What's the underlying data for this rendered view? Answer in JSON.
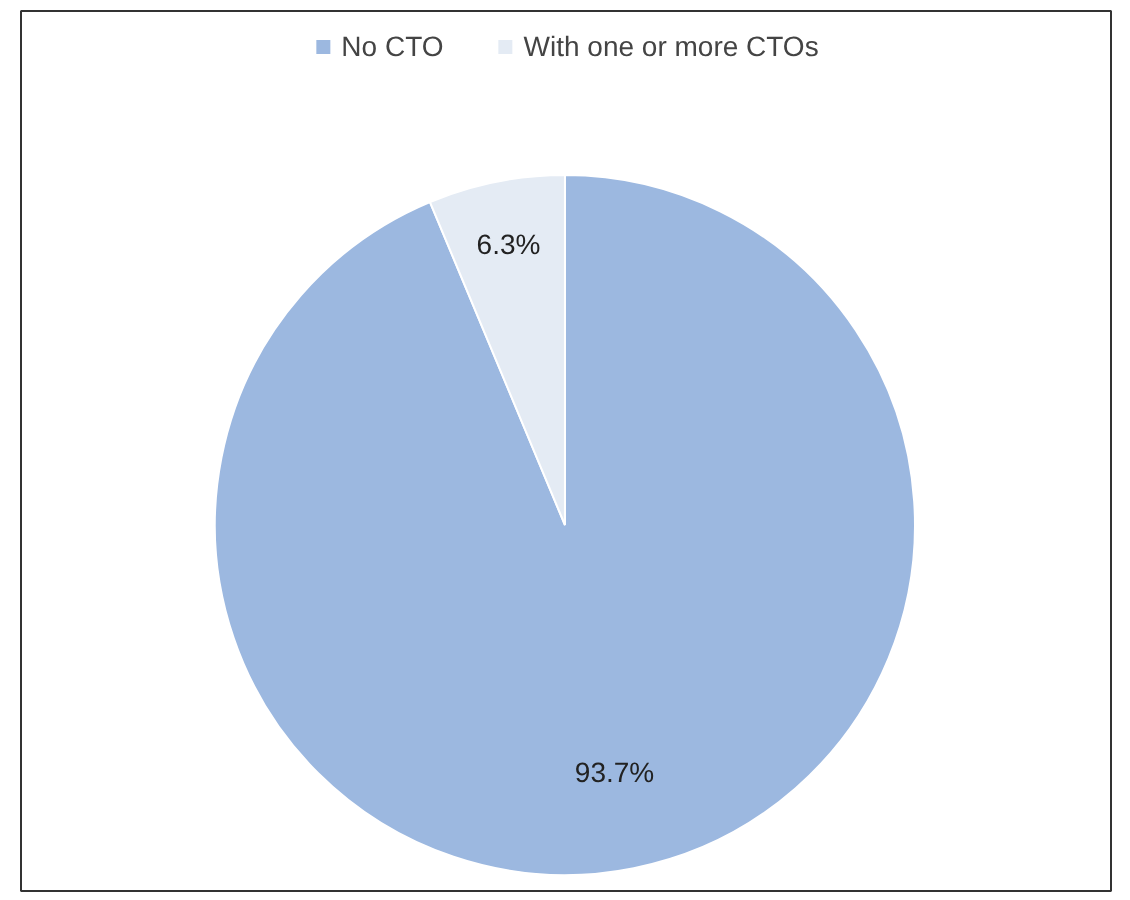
{
  "chart_data": {
    "type": "pie",
    "categories": [
      "No CTO",
      "With one or more CTOs"
    ],
    "values": [
      93.7,
      6.3
    ],
    "colors": [
      "#9cb8e0",
      "#e4ebf4"
    ],
    "value_labels": [
      "93.7%",
      "6.3%"
    ],
    "legend": "top"
  }
}
